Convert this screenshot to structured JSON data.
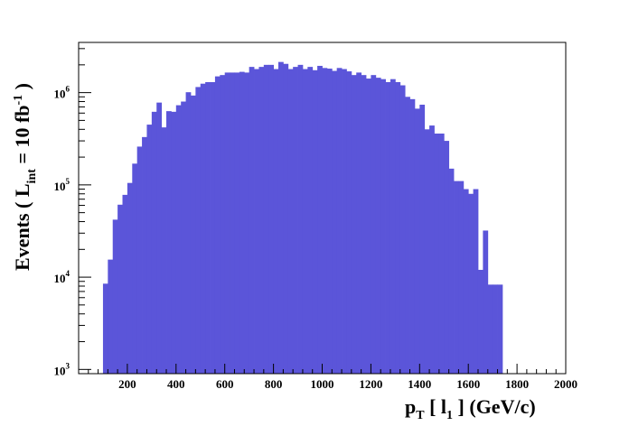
{
  "chart_data": {
    "type": "bar",
    "title": "",
    "xlabel": {
      "main": "p",
      "main_sub": "T",
      "bracket_open": " [ l",
      "bracket_sub": "1",
      "rest": " ] (GeV/c)"
    },
    "ylabel": {
      "prefix": "Events  ( L",
      "sub": "int",
      "mid": " = 10 fb",
      "sup": "-1",
      "suffix": " )"
    },
    "xlim": [
      0,
      2000
    ],
    "ylim": [
      900,
      3500000
    ],
    "y_scale": "log",
    "grid": false,
    "bar_color": "#5b55d9",
    "x_ticks": [
      200,
      400,
      600,
      800,
      1000,
      1200,
      1400,
      1600,
      1800,
      2000
    ],
    "x_tick_labels": [
      "200",
      "400",
      "600",
      "800",
      "1000",
      "1200",
      "1400",
      "1600",
      "1800",
      "2000"
    ],
    "y_ticks": [
      {
        "value": 1000,
        "base": "10",
        "exp": "3"
      },
      {
        "value": 10000,
        "base": "10",
        "exp": "4"
      },
      {
        "value": 100000,
        "base": "10",
        "exp": "5"
      },
      {
        "value": 1000000,
        "base": "10",
        "exp": "6"
      }
    ],
    "bin_width": 20,
    "bins_x_start": [
      100,
      120,
      140,
      160,
      180,
      200,
      220,
      240,
      260,
      280,
      300,
      320,
      340,
      360,
      380,
      400,
      420,
      440,
      460,
      480,
      500,
      520,
      540,
      560,
      580,
      600,
      620,
      640,
      660,
      680,
      700,
      720,
      740,
      760,
      780,
      800,
      820,
      840,
      860,
      880,
      900,
      920,
      940,
      960,
      980,
      1000,
      1020,
      1040,
      1060,
      1080,
      1100,
      1120,
      1140,
      1160,
      1180,
      1200,
      1220,
      1240,
      1260,
      1280,
      1300,
      1320,
      1340,
      1360,
      1380,
      1400,
      1420,
      1440,
      1460,
      1480,
      1500,
      1520,
      1540,
      1560,
      1580,
      1600,
      1620,
      1640,
      1660,
      1680,
      1700,
      1720
    ],
    "values": [
      8500,
      15500,
      42000,
      61000,
      78000,
      105000,
      170000,
      260000,
      330000,
      450000,
      620000,
      780000,
      420000,
      630000,
      620000,
      730000,
      800000,
      1010000,
      930000,
      1150000,
      1250000,
      1300000,
      1300000,
      1500000,
      1550000,
      1650000,
      1650000,
      1650000,
      1680000,
      1650000,
      1900000,
      1800000,
      1900000,
      2000000,
      2000000,
      1800000,
      2150000,
      2050000,
      1800000,
      1900000,
      2000000,
      1800000,
      1900000,
      1750000,
      1950000,
      1850000,
      1820000,
      1720000,
      1850000,
      1800000,
      1700000,
      1550000,
      1650000,
      1550000,
      1420000,
      1550000,
      1450000,
      1400000,
      1300000,
      1400000,
      1300000,
      1200000,
      900000,
      850000,
      670000,
      740000,
      400000,
      440000,
      360000,
      360000,
      300000,
      150000,
      110000,
      110000,
      90000,
      80000,
      90000,
      12000,
      32000,
      8300,
      8300,
      8300
    ]
  }
}
